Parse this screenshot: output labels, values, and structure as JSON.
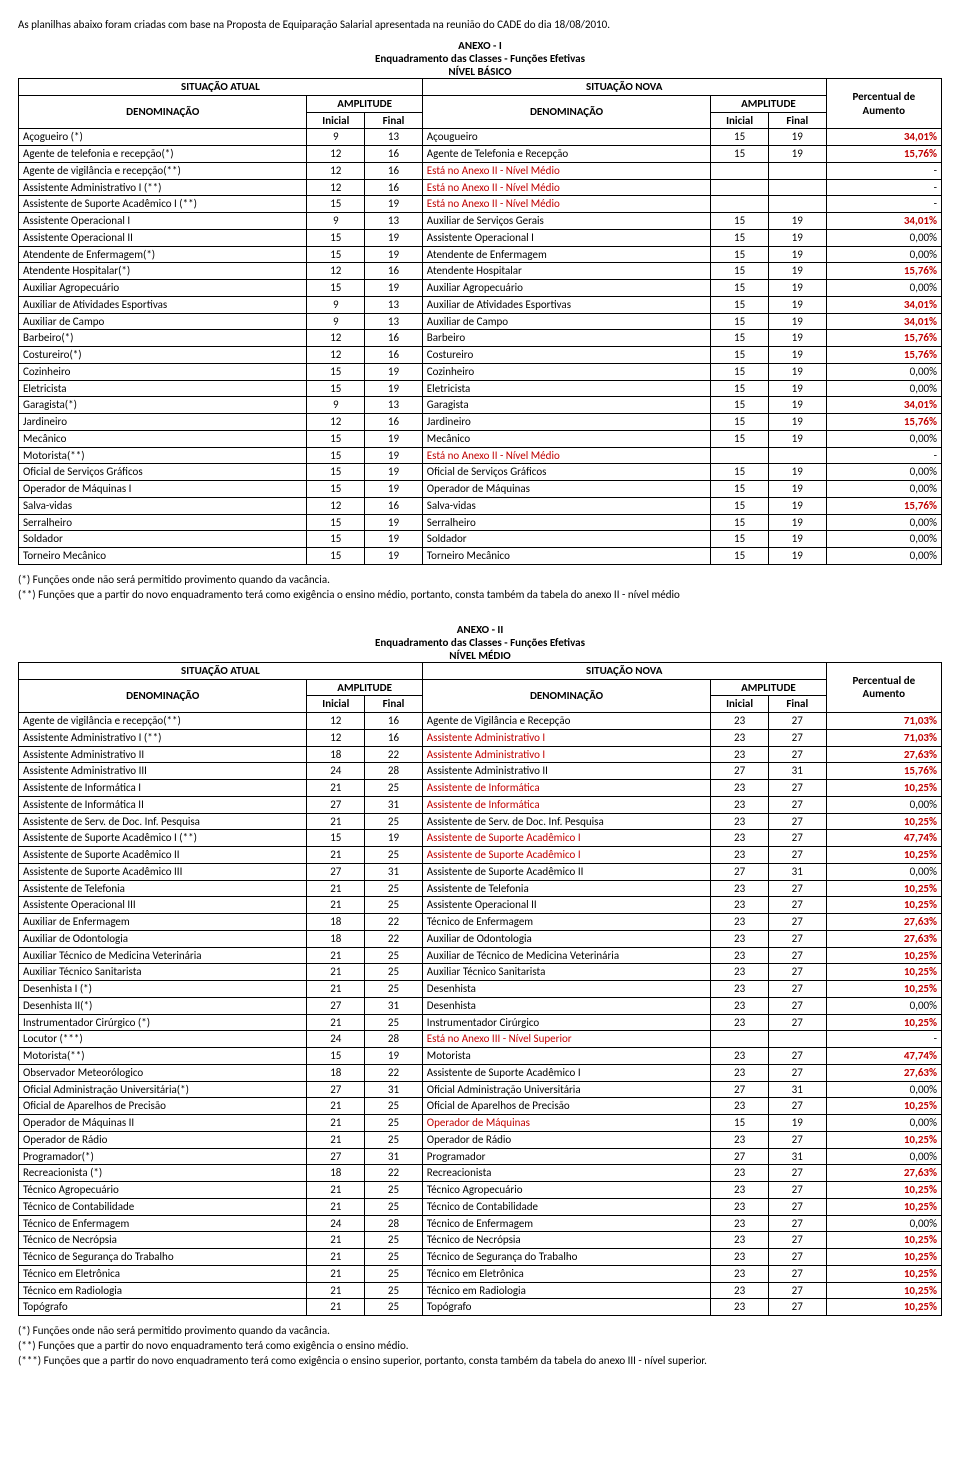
{
  "intro": "As planilhas abaixo foram criadas com base na Proposta de Equiparação Salarial apresentada na reunião do CADE do dia 18/08/2010.",
  "annex1": {
    "title": "ANEXO - I",
    "subtitle": "Enquadramento das Classes - Funções Efetivas",
    "level": "NÍVEL BÁSICO",
    "headers": {
      "sit_atual": "SITUAÇÃO ATUAL",
      "sit_nova": "SITUAÇÃO NOVA",
      "percentual": "Percentual de Aumento",
      "denom": "DENOMINAÇÃO",
      "amplitude": "AMPLITUDE",
      "inicial": "Inicial",
      "final": "Final"
    },
    "rows": [
      {
        "a": "Açogueiro (*)",
        "ai": "9",
        "af": "13",
        "n": "Açougueiro",
        "ni": "15",
        "nf": "19",
        "p": "34,01%",
        "red": false,
        "pbold": true
      },
      {
        "a": "Agente de telefonia e recepção(*)",
        "ai": "12",
        "af": "16",
        "n": "Agente de Telefonia e Recepção",
        "ni": "15",
        "nf": "19",
        "p": "15,76%",
        "red": false,
        "pbold": true
      },
      {
        "a": "Agente de vigilância e recepção(**)",
        "ai": "12",
        "af": "16",
        "n": "Está no Anexo II - Nível Médio",
        "ni": "",
        "nf": "",
        "p": "-",
        "red": true,
        "pbold": false
      },
      {
        "a": "Assistente Administrativo I (**)",
        "ai": "12",
        "af": "16",
        "n": "Está no Anexo II - Nível Médio",
        "ni": "",
        "nf": "",
        "p": "-",
        "red": true,
        "pbold": false
      },
      {
        "a": "Assistente de Suporte Acadêmico I (**)",
        "ai": "15",
        "af": "19",
        "n": "Está no Anexo II - Nível Médio",
        "ni": "",
        "nf": "",
        "p": "-",
        "red": true,
        "pbold": false
      },
      {
        "a": "Assistente Operacional I",
        "ai": "9",
        "af": "13",
        "n": "Auxiliar de Serviços Gerais",
        "ni": "15",
        "nf": "19",
        "p": "34,01%",
        "red": false,
        "pbold": true
      },
      {
        "a": "Assistente Operacional II",
        "ai": "15",
        "af": "19",
        "n": "Assistente Operacional I",
        "ni": "15",
        "nf": "19",
        "p": "0,00%",
        "red": false,
        "pbold": false
      },
      {
        "a": "Atendente de Enfermagem(*)",
        "ai": "15",
        "af": "19",
        "n": "Atendente de Enfermagem",
        "ni": "15",
        "nf": "19",
        "p": "0,00%",
        "red": false,
        "pbold": false
      },
      {
        "a": "Atendente Hospitalar(*)",
        "ai": "12",
        "af": "16",
        "n": "Atendente Hospitalar",
        "ni": "15",
        "nf": "19",
        "p": "15,76%",
        "red": false,
        "pbold": true
      },
      {
        "a": "Auxiliar Agropecuário",
        "ai": "15",
        "af": "19",
        "n": "Auxiliar Agropecuário",
        "ni": "15",
        "nf": "19",
        "p": "0,00%",
        "red": false,
        "pbold": false
      },
      {
        "a": "Auxiliar de Atividades Esportivas",
        "ai": "9",
        "af": "13",
        "n": "Auxiliar de Atividades Esportivas",
        "ni": "15",
        "nf": "19",
        "p": "34,01%",
        "red": false,
        "pbold": true
      },
      {
        "a": "Auxiliar de Campo",
        "ai": "9",
        "af": "13",
        "n": "Auxiliar de Campo",
        "ni": "15",
        "nf": "19",
        "p": "34,01%",
        "red": false,
        "pbold": true
      },
      {
        "a": "Barbeiro(*)",
        "ai": "12",
        "af": "16",
        "n": "Barbeiro",
        "ni": "15",
        "nf": "19",
        "p": "15,76%",
        "red": false,
        "pbold": true
      },
      {
        "a": "Costureiro(*)",
        "ai": "12",
        "af": "16",
        "n": "Costureiro",
        "ni": "15",
        "nf": "19",
        "p": "15,76%",
        "red": false,
        "pbold": true
      },
      {
        "a": "Cozinheiro",
        "ai": "15",
        "af": "19",
        "n": "Cozinheiro",
        "ni": "15",
        "nf": "19",
        "p": "0,00%",
        "red": false,
        "pbold": false
      },
      {
        "a": "Eletricista",
        "ai": "15",
        "af": "19",
        "n": "Eletricista",
        "ni": "15",
        "nf": "19",
        "p": "0,00%",
        "red": false,
        "pbold": false
      },
      {
        "a": "Garagista(*)",
        "ai": "9",
        "af": "13",
        "n": "Garagista",
        "ni": "15",
        "nf": "19",
        "p": "34,01%",
        "red": false,
        "pbold": true
      },
      {
        "a": "Jardineiro",
        "ai": "12",
        "af": "16",
        "n": "Jardineiro",
        "ni": "15",
        "nf": "19",
        "p": "15,76%",
        "red": false,
        "pbold": true
      },
      {
        "a": "Mecânico",
        "ai": "15",
        "af": "19",
        "n": "Mecânico",
        "ni": "15",
        "nf": "19",
        "p": "0,00%",
        "red": false,
        "pbold": false
      },
      {
        "a": "Motorista(**)",
        "ai": "15",
        "af": "19",
        "n": "Está no Anexo II - Nível Médio",
        "ni": "",
        "nf": "",
        "p": "-",
        "red": true,
        "pbold": false
      },
      {
        "a": "Oficial de Serviços Gráficos",
        "ai": "15",
        "af": "19",
        "n": "Oficial de Serviços Gráficos",
        "ni": "15",
        "nf": "19",
        "p": "0,00%",
        "red": false,
        "pbold": false
      },
      {
        "a": "Operador de Máquinas I",
        "ai": "15",
        "af": "19",
        "n": "Operador de Máquinas",
        "ni": "15",
        "nf": "19",
        "p": "0,00%",
        "red": false,
        "pbold": false
      },
      {
        "a": "Salva-vidas",
        "ai": "12",
        "af": "16",
        "n": "Salva-vidas",
        "ni": "15",
        "nf": "19",
        "p": "15,76%",
        "red": false,
        "pbold": true
      },
      {
        "a": "Serralheiro",
        "ai": "15",
        "af": "19",
        "n": "Serralheiro",
        "ni": "15",
        "nf": "19",
        "p": "0,00%",
        "red": false,
        "pbold": false
      },
      {
        "a": "Soldador",
        "ai": "15",
        "af": "19",
        "n": "Soldador",
        "ni": "15",
        "nf": "19",
        "p": "0,00%",
        "red": false,
        "pbold": false
      },
      {
        "a": "Torneiro Mecânico",
        "ai": "15",
        "af": "19",
        "n": "Torneiro Mecânico",
        "ni": "15",
        "nf": "19",
        "p": "0,00%",
        "red": false,
        "pbold": false
      }
    ],
    "notes": [
      "(*) Funções onde não será permitido provimento quando da vacância.",
      "(**) Funções que a partir do novo enquadramento terá como exigência o ensino médio, portanto, consta também da tabela do anexo II - nível médio"
    ]
  },
  "annex2": {
    "title": "ANEXO - II",
    "subtitle": "Enquadramento das Classes - Funções Efetivas",
    "level": "NÍVEL MÉDIO",
    "rows": [
      {
        "a": "Agente de vigilância e recepção(**)",
        "ai": "12",
        "af": "16",
        "n": "Agente de Vigilância e Recepção",
        "ni": "23",
        "nf": "27",
        "p": "71,03%",
        "red": false,
        "pbold": true
      },
      {
        "a": "Assistente Administrativo I (**)",
        "ai": "12",
        "af": "16",
        "n": "Assistente Administrativo I",
        "ni": "23",
        "nf": "27",
        "p": "71,03%",
        "red": true,
        "pbold": true
      },
      {
        "a": "Assistente Administrativo II",
        "ai": "18",
        "af": "22",
        "n": "Assistente Administrativo I",
        "ni": "23",
        "nf": "27",
        "p": "27,63%",
        "red": true,
        "pbold": true
      },
      {
        "a": "Assistente Administrativo III",
        "ai": "24",
        "af": "28",
        "n": "Assistente Administrativo II",
        "ni": "27",
        "nf": "31",
        "p": "15,76%",
        "red": false,
        "pbold": true
      },
      {
        "a": "Assistente de Informática I",
        "ai": "21",
        "af": "25",
        "n": "Assistente de Informática",
        "ni": "23",
        "nf": "27",
        "p": "10,25%",
        "red": true,
        "pbold": true
      },
      {
        "a": "Assistente de Informática II",
        "ai": "27",
        "af": "31",
        "n": "Assistente de Informática",
        "ni": "23",
        "nf": "27",
        "p": "0,00%",
        "red": true,
        "pbold": false
      },
      {
        "a": "Assistente de Serv. de Doc. Inf. Pesquisa",
        "ai": "21",
        "af": "25",
        "n": "Assistente de Serv. de Doc. Inf. Pesquisa",
        "ni": "23",
        "nf": "27",
        "p": "10,25%",
        "red": false,
        "pbold": true
      },
      {
        "a": "Assistente de Suporte Acadêmico I (**)",
        "ai": "15",
        "af": "19",
        "n": "Assistente de Suporte Acadêmico I",
        "ni": "23",
        "nf": "27",
        "p": "47,74%",
        "red": true,
        "pbold": true
      },
      {
        "a": "Assistente de Suporte Acadêmico II",
        "ai": "21",
        "af": "25",
        "n": "Assistente de Suporte Acadêmico I",
        "ni": "23",
        "nf": "27",
        "p": "10,25%",
        "red": true,
        "pbold": true
      },
      {
        "a": "Assistente de Suporte Acadêmico III",
        "ai": "27",
        "af": "31",
        "n": "Assistente de Suporte Acadêmico II",
        "ni": "27",
        "nf": "31",
        "p": "0,00%",
        "red": false,
        "pbold": false
      },
      {
        "a": "Assistente de Telefonia",
        "ai": "21",
        "af": "25",
        "n": "Assistente de Telefonia",
        "ni": "23",
        "nf": "27",
        "p": "10,25%",
        "red": false,
        "pbold": true
      },
      {
        "a": "Assistente Operacional III",
        "ai": "21",
        "af": "25",
        "n": "Assistente Operacional II",
        "ni": "23",
        "nf": "27",
        "p": "10,25%",
        "red": false,
        "pbold": true
      },
      {
        "a": "Auxiliar de Enfermagem",
        "ai": "18",
        "af": "22",
        "n": "Técnico de Enfermagem",
        "ni": "23",
        "nf": "27",
        "p": "27,63%",
        "red": false,
        "pbold": true
      },
      {
        "a": "Auxiliar de Odontologia",
        "ai": "18",
        "af": "22",
        "n": "Auxiliar de Odontologia",
        "ni": "23",
        "nf": "27",
        "p": "27,63%",
        "red": false,
        "pbold": true
      },
      {
        "a": "Auxiliar Técnico de Medicina Veterinária",
        "ai": "21",
        "af": "25",
        "n": "Auxiliar de Técnico de Medicina Veterinária",
        "ni": "23",
        "nf": "27",
        "p": "10,25%",
        "red": false,
        "pbold": true
      },
      {
        "a": "Auxiliar Técnico Sanitarista",
        "ai": "21",
        "af": "25",
        "n": "Auxiliar Técnico Sanitarista",
        "ni": "23",
        "nf": "27",
        "p": "10,25%",
        "red": false,
        "pbold": true
      },
      {
        "a": "Desenhista I (*)",
        "ai": "21",
        "af": "25",
        "n": "Desenhista",
        "ni": "23",
        "nf": "27",
        "p": "10,25%",
        "red": false,
        "pbold": true
      },
      {
        "a": "Desenhista II(*)",
        "ai": "27",
        "af": "31",
        "n": "Desenhista",
        "ni": "23",
        "nf": "27",
        "p": "0,00%",
        "red": false,
        "pbold": false
      },
      {
        "a": "Instrumentador Cirúrgico (*)",
        "ai": "21",
        "af": "25",
        "n": "Instrumentador Cirúrgico",
        "ni": "23",
        "nf": "27",
        "p": "10,25%",
        "red": false,
        "pbold": true
      },
      {
        "a": "Locutor (***)",
        "ai": "24",
        "af": "28",
        "n": "Está no Anexo III - Nível Superior",
        "ni": "",
        "nf": "",
        "p": "-",
        "red": true,
        "pbold": false
      },
      {
        "a": "Motorista(**)",
        "ai": "15",
        "af": "19",
        "n": "Motorista",
        "ni": "23",
        "nf": "27",
        "p": "47,74%",
        "red": false,
        "pbold": true
      },
      {
        "a": "Observador Meteorólogico",
        "ai": "18",
        "af": "22",
        "n": "Assistente de Suporte Acadêmico I",
        "ni": "23",
        "nf": "27",
        "p": "27,63%",
        "red": false,
        "pbold": true
      },
      {
        "a": "Oficial Administração Universitária(*)",
        "ai": "27",
        "af": "31",
        "n": "Oficial Administração Universitária",
        "ni": "27",
        "nf": "31",
        "p": "0,00%",
        "red": false,
        "pbold": false
      },
      {
        "a": "Oficial de Aparelhos de Precisão",
        "ai": "21",
        "af": "25",
        "n": "Oficial de Aparelhos de Precisão",
        "ni": "23",
        "nf": "27",
        "p": "10,25%",
        "red": false,
        "pbold": true
      },
      {
        "a": "Operador de Máquinas II",
        "ai": "21",
        "af": "25",
        "n": "Operador de Máquinas",
        "ni": "15",
        "nf": "19",
        "p": "0,00%",
        "red": true,
        "pbold": false
      },
      {
        "a": "Operador de Rádio",
        "ai": "21",
        "af": "25",
        "n": "Operador de Rádio",
        "ni": "23",
        "nf": "27",
        "p": "10,25%",
        "red": false,
        "pbold": true
      },
      {
        "a": "Programador(*)",
        "ai": "27",
        "af": "31",
        "n": "Programador",
        "ni": "27",
        "nf": "31",
        "p": "0,00%",
        "red": false,
        "pbold": false
      },
      {
        "a": "Recreacionista (*)",
        "ai": "18",
        "af": "22",
        "n": "Recreacionista",
        "ni": "23",
        "nf": "27",
        "p": "27,63%",
        "red": false,
        "pbold": true
      },
      {
        "a": "Técnico Agropecuário",
        "ai": "21",
        "af": "25",
        "n": "Técnico Agropecuário",
        "ni": "23",
        "nf": "27",
        "p": "10,25%",
        "red": false,
        "pbold": true
      },
      {
        "a": "Técnico de Contabilidade",
        "ai": "21",
        "af": "25",
        "n": "Técnico de Contabilidade",
        "ni": "23",
        "nf": "27",
        "p": "10,25%",
        "red": false,
        "pbold": true
      },
      {
        "a": "Técnico de Enfermagem",
        "ai": "24",
        "af": "28",
        "n": "Técnico de Enfermagem",
        "ni": "23",
        "nf": "27",
        "p": "0,00%",
        "red": false,
        "pbold": false
      },
      {
        "a": "Técnico de Necrópsia",
        "ai": "21",
        "af": "25",
        "n": "Técnico de Necrópsia",
        "ni": "23",
        "nf": "27",
        "p": "10,25%",
        "red": false,
        "pbold": true
      },
      {
        "a": "Técnico de Segurança do Trabalho",
        "ai": "21",
        "af": "25",
        "n": "Técnico de Segurança do Trabalho",
        "ni": "23",
        "nf": "27",
        "p": "10,25%",
        "red": false,
        "pbold": true
      },
      {
        "a": "Técnico em Eletrônica",
        "ai": "21",
        "af": "25",
        "n": "Técnico em Eletrônica",
        "ni": "23",
        "nf": "27",
        "p": "10,25%",
        "red": false,
        "pbold": true
      },
      {
        "a": "Técnico em Radiologia",
        "ai": "21",
        "af": "25",
        "n": "Técnico em Radiologia",
        "ni": "23",
        "nf": "27",
        "p": "10,25%",
        "red": false,
        "pbold": true
      },
      {
        "a": "Topógrafo",
        "ai": "21",
        "af": "25",
        "n": "Topógrafo",
        "ni": "23",
        "nf": "27",
        "p": "10,25%",
        "red": false,
        "pbold": true
      }
    ],
    "notes": [
      "(*) Funções onde não será permitido provimento quando da vacância.",
      "(**) Funções que a partir do novo enquadramento terá como exigência o ensino médio.",
      "(***) Funções que a partir do novo enquadramento terá como exigência o ensino superior, portanto, consta também da tabela do anexo III - nível superior."
    ]
  }
}
